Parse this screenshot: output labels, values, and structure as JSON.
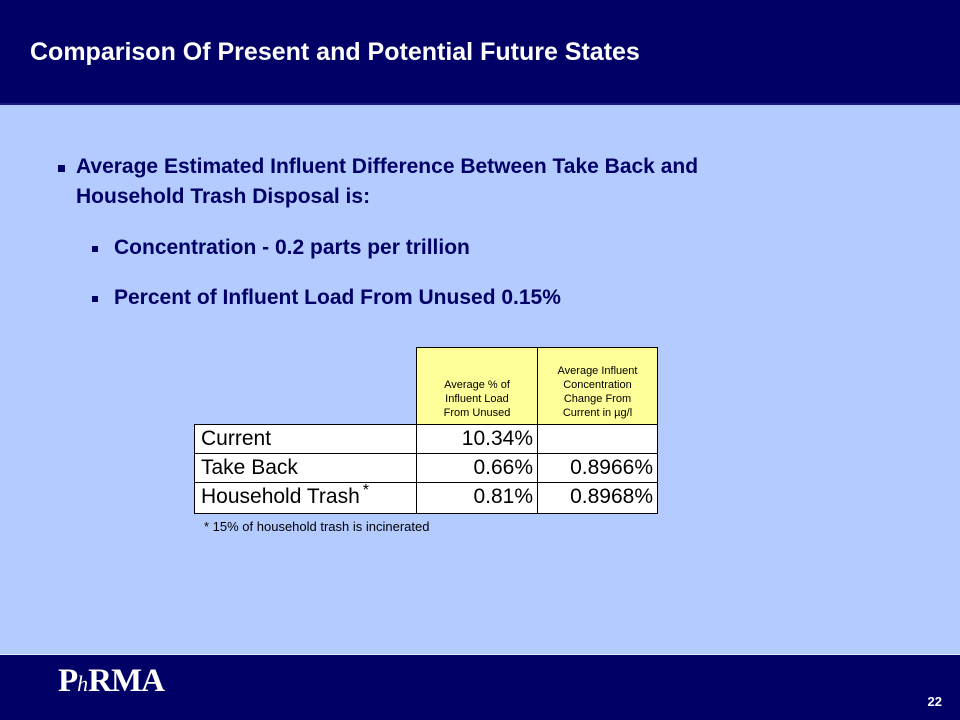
{
  "slide": {
    "title": "Comparison Of Present and Potential Future States",
    "page_number": "22"
  },
  "bullets": {
    "main": "Average Estimated Influent Difference Between Take Back and Household Trash Disposal is:",
    "main_line1": "Average Estimated Influent Difference Between Take Back and",
    "main_line2": "Household Trash Disposal is:",
    "sub1": "Concentration - 0.2 parts per trillion",
    "sub2": "Percent of Influent Load From Unused 0.15%"
  },
  "table": {
    "header1": [
      "Average % of",
      "Influent Load",
      "From Unused"
    ],
    "header2": [
      "Average Influent",
      "Concentration",
      "Change From",
      "Current in µg/l"
    ],
    "rows": [
      {
        "label": "Current",
        "col1": "10.34%",
        "col2": ""
      },
      {
        "label": "Take Back",
        "col1": "0.66%",
        "col2": "0.8966%"
      },
      {
        "label": "Household Trash",
        "label_mark": "*",
        "col1": "0.81%",
        "col2": "0.8968%"
      }
    ],
    "footnote": "* 15% of household trash is incinerated"
  },
  "logo": {
    "text_a": "P",
    "text_b": "h",
    "text_c": "RMA"
  },
  "colors": {
    "navy": "#000066",
    "background": "#b3cbff",
    "header_fill": "#ffff99"
  }
}
